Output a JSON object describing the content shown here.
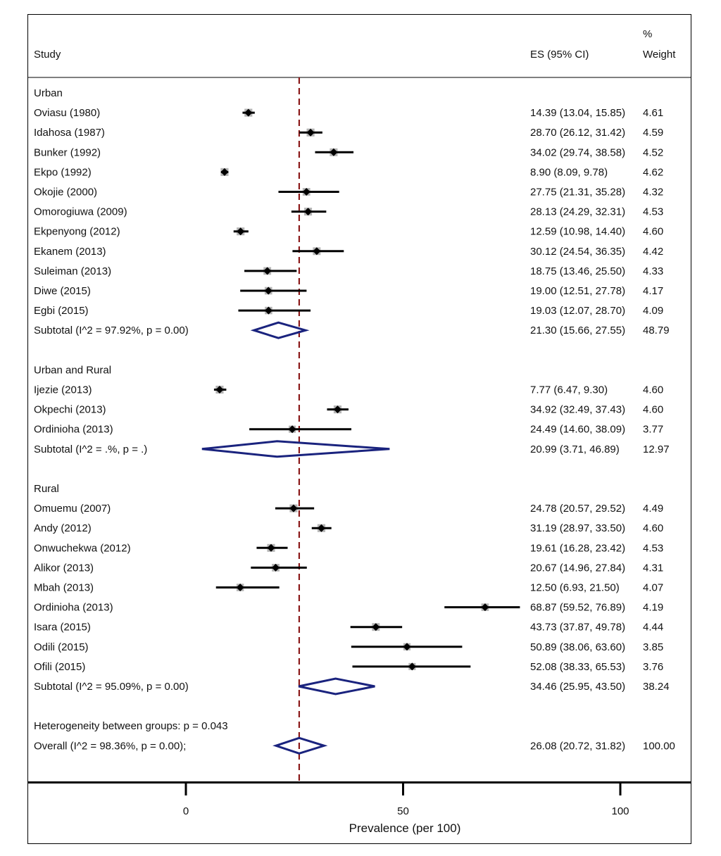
{
  "colors": {
    "ci_line": "#000000",
    "point_marker": "#000000",
    "weight_box": "#b4b4b4",
    "diamond": "#1a237e",
    "overall_line": "#8b1a1a",
    "frame": "#000000"
  },
  "header": {
    "study": "Study",
    "es": "ES (95% CI)",
    "weight_pct": "%",
    "weight": "Weight"
  },
  "chart_data": {
    "type": "forest",
    "xlabel": "Prevalence (per 100)",
    "xticks": [
      0,
      50,
      100
    ],
    "xlim": [
      -36.5,
      116.5
    ],
    "overall_estimate_line": 26.08,
    "groups": [
      {
        "name": "Urban",
        "studies": [
          {
            "label": "Oviasu (1980)",
            "es": 14.39,
            "lo": 13.04,
            "hi": 15.85,
            "es_text": "14.39 (13.04, 15.85)",
            "weight": "4.61"
          },
          {
            "label": "Idahosa (1987)",
            "es": 28.7,
            "lo": 26.12,
            "hi": 31.42,
            "es_text": "28.70 (26.12, 31.42)",
            "weight": "4.59"
          },
          {
            "label": "Bunker (1992)",
            "es": 34.02,
            "lo": 29.74,
            "hi": 38.58,
            "es_text": "34.02 (29.74, 38.58)",
            "weight": "4.52"
          },
          {
            "label": "Ekpo (1992)",
            "es": 8.9,
            "lo": 8.09,
            "hi": 9.78,
            "es_text": "8.90 (8.09, 9.78)",
            "weight": "4.62"
          },
          {
            "label": "Okojie (2000)",
            "es": 27.75,
            "lo": 21.31,
            "hi": 35.28,
            "es_text": "27.75 (21.31, 35.28)",
            "weight": "4.32"
          },
          {
            "label": "Omorogiuwa (2009)",
            "es": 28.13,
            "lo": 24.29,
            "hi": 32.31,
            "es_text": "28.13 (24.29, 32.31)",
            "weight": "4.53"
          },
          {
            "label": "Ekpenyong (2012)",
            "es": 12.59,
            "lo": 10.98,
            "hi": 14.4,
            "es_text": "12.59 (10.98, 14.40)",
            "weight": "4.60"
          },
          {
            "label": "Ekanem (2013)",
            "es": 30.12,
            "lo": 24.54,
            "hi": 36.35,
            "es_text": "30.12 (24.54, 36.35)",
            "weight": "4.42"
          },
          {
            "label": "Suleiman (2013)",
            "es": 18.75,
            "lo": 13.46,
            "hi": 25.5,
            "es_text": "18.75 (13.46, 25.50)",
            "weight": "4.33"
          },
          {
            "label": "Diwe (2015)",
            "es": 19.0,
            "lo": 12.51,
            "hi": 27.78,
            "es_text": "19.00 (12.51, 27.78)",
            "weight": "4.17"
          },
          {
            "label": "Egbi (2015)",
            "es": 19.03,
            "lo": 12.07,
            "hi": 28.7,
            "es_text": "19.03 (12.07, 28.70)",
            "weight": "4.09"
          }
        ],
        "subtotal": {
          "label": "Subtotal  (I^2 = 97.92%, p = 0.00)",
          "es": 21.3,
          "lo": 15.66,
          "hi": 27.55,
          "es_text": "21.30 (15.66, 27.55)",
          "weight": "48.79"
        }
      },
      {
        "name": "Urban and Rural",
        "studies": [
          {
            "label": "Ijezie (2013)",
            "es": 7.77,
            "lo": 6.47,
            "hi": 9.3,
            "es_text": "7.77 (6.47, 9.30)",
            "weight": "4.60"
          },
          {
            "label": "Okpechi (2013)",
            "es": 34.92,
            "lo": 32.49,
            "hi": 37.43,
            "es_text": "34.92 (32.49, 37.43)",
            "weight": "4.60"
          },
          {
            "label": "Ordinioha (2013)",
            "es": 24.49,
            "lo": 14.6,
            "hi": 38.09,
            "es_text": "24.49 (14.60, 38.09)",
            "weight": "3.77"
          }
        ],
        "subtotal": {
          "label": "Subtotal  (I^2 = .%, p = .)",
          "es": 20.99,
          "lo": 3.71,
          "hi": 46.89,
          "es_text": "20.99 (3.71, 46.89)",
          "weight": "12.97"
        }
      },
      {
        "name": "Rural",
        "studies": [
          {
            "label": "Omuemu (2007)",
            "es": 24.78,
            "lo": 20.57,
            "hi": 29.52,
            "es_text": "24.78 (20.57, 29.52)",
            "weight": "4.49"
          },
          {
            "label": "Andy (2012)",
            "es": 31.19,
            "lo": 28.97,
            "hi": 33.5,
            "es_text": "31.19 (28.97, 33.50)",
            "weight": "4.60"
          },
          {
            "label": "Onwuchekwa (2012)",
            "es": 19.61,
            "lo": 16.28,
            "hi": 23.42,
            "es_text": "19.61 (16.28, 23.42)",
            "weight": "4.53"
          },
          {
            "label": "Alikor (2013)",
            "es": 20.67,
            "lo": 14.96,
            "hi": 27.84,
            "es_text": "20.67 (14.96, 27.84)",
            "weight": "4.31"
          },
          {
            "label": "Mbah (2013)",
            "es": 12.5,
            "lo": 6.93,
            "hi": 21.5,
            "es_text": "12.50 (6.93, 21.50)",
            "weight": "4.07"
          },
          {
            "label": "Ordinioha (2013)",
            "es": 68.87,
            "lo": 59.52,
            "hi": 76.89,
            "es_text": "68.87 (59.52, 76.89)",
            "weight": "4.19"
          },
          {
            "label": "Isara (2015)",
            "es": 43.73,
            "lo": 37.87,
            "hi": 49.78,
            "es_text": "43.73 (37.87, 49.78)",
            "weight": "4.44"
          },
          {
            "label": "Odili (2015)",
            "es": 50.89,
            "lo": 38.06,
            "hi": 63.6,
            "es_text": "50.89 (38.06, 63.60)",
            "weight": "3.85"
          },
          {
            "label": "Ofili (2015)",
            "es": 52.08,
            "lo": 38.33,
            "hi": 65.53,
            "es_text": "52.08 (38.33, 65.53)",
            "weight": "3.76"
          }
        ],
        "subtotal": {
          "label": "Subtotal  (I^2 = 95.09%, p = 0.00)",
          "es": 34.46,
          "lo": 25.95,
          "hi": 43.5,
          "es_text": "34.46 (25.95, 43.50)",
          "weight": "38.24"
        }
      }
    ],
    "heterogeneity": "Heterogeneity between groups: p = 0.043",
    "overall": {
      "label": "Overall  (I^2 = 98.36%, p = 0.00);",
      "es": 26.08,
      "lo": 20.72,
      "hi": 31.82,
      "es_text": "26.08 (20.72, 31.82)",
      "weight": "100.00"
    }
  }
}
